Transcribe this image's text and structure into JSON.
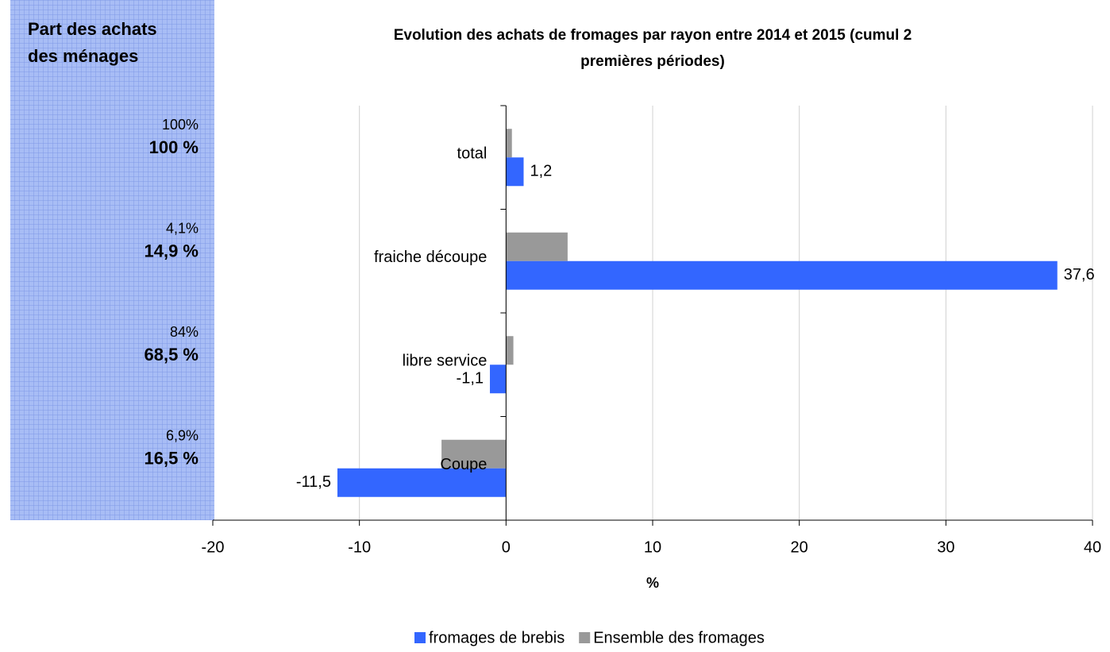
{
  "chart_data": {
    "type": "barh",
    "title_lines": [
      "Evolution des achats de fromages par rayon entre 2014 et 2015 (cumul 2",
      "premières périodes)"
    ],
    "categories": [
      "total",
      "fraiche découpe",
      "libre service",
      "Coupe"
    ],
    "series": [
      {
        "name": "Ensemble des fromages",
        "color": "#999999",
        "values": [
          0.4,
          4.2,
          0.5,
          -4.4
        ]
      },
      {
        "name": "fromages de brebis",
        "color": "#3366ff",
        "values": [
          1.2,
          37.6,
          -1.1,
          -11.5
        ],
        "value_labels": [
          "1,2",
          "37,6",
          "-1,1",
          "-11,5"
        ]
      }
    ],
    "legend_order": [
      1,
      0
    ],
    "xlim": [
      -20,
      40
    ],
    "xticks": [
      -20,
      -10,
      0,
      10,
      20,
      30,
      40
    ],
    "grid": true,
    "xlabel": "%",
    "side_panel": {
      "title_lines": [
        "Part des achats",
        "des ménages"
      ],
      "rows": [
        {
          "small": "100%",
          "bold": "100 %"
        },
        {
          "small": "4,1%",
          "bold": "14,9 %"
        },
        {
          "small": "84%",
          "bold": "68,5 %"
        },
        {
          "small": "6,9%",
          "bold": "16,5 %"
        }
      ]
    }
  }
}
